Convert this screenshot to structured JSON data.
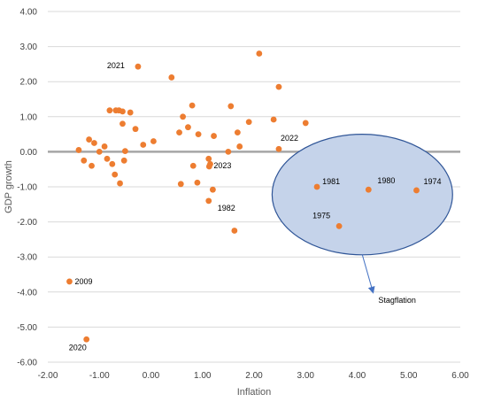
{
  "chart_data": {
    "type": "scatter",
    "xlabel": "Inflation",
    "ylabel": "GDP growth",
    "xlim": [
      -2.0,
      6.0
    ],
    "ylim": [
      -6.0,
      4.0
    ],
    "x_ticks": [
      "-2.00",
      "-1.00",
      "0.00",
      "1.00",
      "2.00",
      "3.00",
      "4.00",
      "5.00",
      "6.00"
    ],
    "y_ticks": [
      "4.00",
      "3.00",
      "2.00",
      "1.00",
      "0.00",
      "-1.00",
      "-2.00",
      "-3.00",
      "-4.00",
      "-5.00",
      "-6.00"
    ],
    "grid": "horizontal",
    "marker_color": "#ED7D31",
    "zero_line_color": "#A6A6A6",
    "points": [
      {
        "x": -1.4,
        "y": 0.05
      },
      {
        "x": -1.3,
        "y": -0.25
      },
      {
        "x": -1.2,
        "y": 0.35
      },
      {
        "x": -1.15,
        "y": -0.4
      },
      {
        "x": -1.1,
        "y": 0.25
      },
      {
        "x": -1.0,
        "y": 0.0
      },
      {
        "x": -0.9,
        "y": 0.15
      },
      {
        "x": -0.85,
        "y": -0.2
      },
      {
        "x": -0.8,
        "y": 1.18
      },
      {
        "x": -0.75,
        "y": -0.35
      },
      {
        "x": -0.7,
        "y": -0.65
      },
      {
        "x": -0.68,
        "y": 1.18
      },
      {
        "x": -0.62,
        "y": 1.18
      },
      {
        "x": -0.6,
        "y": -0.9
      },
      {
        "x": -0.55,
        "y": 1.15
      },
      {
        "x": -0.55,
        "y": 0.8
      },
      {
        "x": -0.52,
        "y": -0.25
      },
      {
        "x": -0.5,
        "y": 0.02
      },
      {
        "x": -0.4,
        "y": 1.12
      },
      {
        "x": -0.3,
        "y": 0.65
      },
      {
        "x": -0.15,
        "y": 0.2
      },
      {
        "x": 0.05,
        "y": 0.3
      },
      {
        "x": 0.4,
        "y": 2.12
      },
      {
        "x": 0.55,
        "y": 0.55
      },
      {
        "x": 0.58,
        "y": -0.92
      },
      {
        "x": 0.62,
        "y": 1.0
      },
      {
        "x": 0.72,
        "y": 0.7
      },
      {
        "x": 0.8,
        "y": 1.32
      },
      {
        "x": 0.82,
        "y": -0.4
      },
      {
        "x": 0.9,
        "y": -0.88
      },
      {
        "x": 0.92,
        "y": 0.5
      },
      {
        "x": 1.12,
        "y": -0.2
      },
      {
        "x": 1.15,
        "y": -0.35
      },
      {
        "x": 1.2,
        "y": -1.08
      },
      {
        "x": 1.22,
        "y": 0.45
      },
      {
        "x": 1.5,
        "y": 0.0
      },
      {
        "x": 1.55,
        "y": 1.3
      },
      {
        "x": 1.68,
        "y": 0.55
      },
      {
        "x": 1.72,
        "y": 0.15
      },
      {
        "x": 1.9,
        "y": 0.85
      },
      {
        "x": 2.1,
        "y": 2.8
      },
      {
        "x": 2.38,
        "y": 0.92
      },
      {
        "x": 2.48,
        "y": 1.85
      },
      {
        "x": 3.0,
        "y": 0.82
      },
      {
        "x": -0.25,
        "y": 2.43,
        "label": "2021"
      },
      {
        "x": 2.48,
        "y": 0.08,
        "label": "2022"
      },
      {
        "x": 1.13,
        "y": -0.42,
        "label": "2023"
      },
      {
        "x": 1.12,
        "y": -1.4,
        "label": "1982"
      },
      {
        "x": 1.62,
        "y": -2.25,
        "label": ""
      },
      {
        "x": 3.22,
        "y": -1.0,
        "label": "1981"
      },
      {
        "x": 4.22,
        "y": -1.08,
        "label": "1980"
      },
      {
        "x": 5.15,
        "y": -1.1,
        "label": "1974"
      },
      {
        "x": 3.65,
        "y": -2.12,
        "label": "1975"
      },
      {
        "x": -1.58,
        "y": -3.7,
        "label": "2009"
      },
      {
        "x": -1.25,
        "y": -5.35,
        "label": "2020"
      }
    ],
    "annotation": {
      "text": "Stagflation",
      "ellipse_center": {
        "x": 4.1,
        "y": -1.22
      },
      "ellipse_radius": {
        "x": 1.75,
        "y": 1.72
      },
      "fill": "#C5D3EA",
      "stroke": "#2F5597",
      "arrow_color": "#4472C4"
    }
  }
}
